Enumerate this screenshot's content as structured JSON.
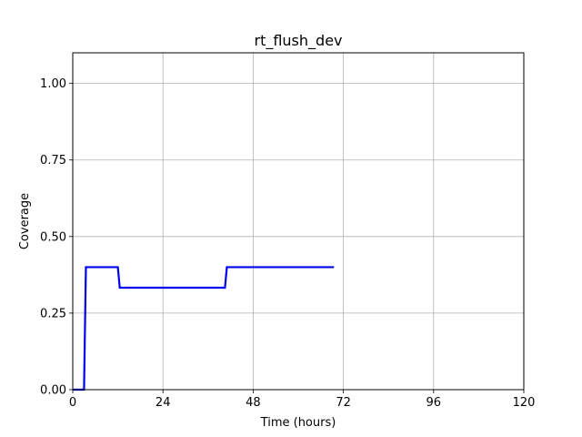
{
  "chart_data": {
    "type": "line",
    "title": "rt_flush_dev",
    "xlabel": "Time (hours)",
    "ylabel": "Coverage",
    "xlim": [
      0,
      120
    ],
    "ylim": [
      0,
      1.1
    ],
    "xticks": [
      0,
      24,
      48,
      72,
      96,
      120
    ],
    "xtick_labels": [
      "0",
      "24",
      "48",
      "72",
      "96",
      "120"
    ],
    "yticks": [
      0.0,
      0.25,
      0.5,
      0.75,
      1.0
    ],
    "ytick_labels": [
      "0.00",
      "0.25",
      "0.50",
      "0.75",
      "1.00"
    ],
    "grid": true,
    "series": [
      {
        "color": "#0000ee",
        "x": [
          0,
          3,
          3.5,
          12,
          12.5,
          40.5,
          41,
          69.5
        ],
        "y": [
          0,
          0,
          0.4,
          0.4,
          0.333,
          0.333,
          0.4,
          0.4
        ]
      }
    ]
  }
}
